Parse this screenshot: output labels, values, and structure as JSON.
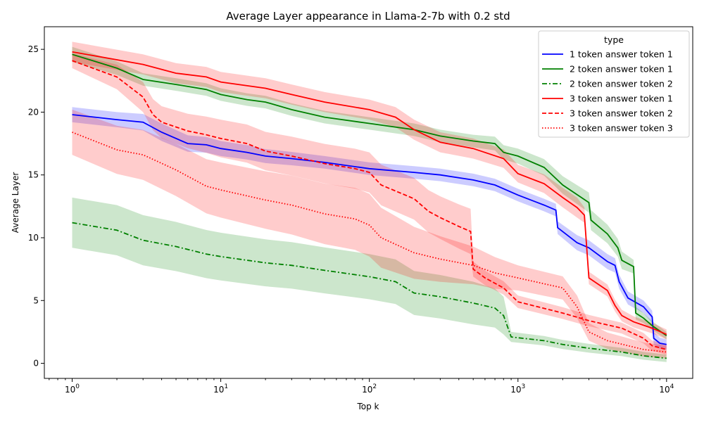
{
  "chart_data": {
    "type": "line",
    "title": "Average Layer appearance in Llama-2-7b with 0.2 std",
    "xlabel": "Top k",
    "ylabel": "Average Layer",
    "xscale": "log",
    "xlim": [
      0.65,
      15000
    ],
    "ylim": [
      -1.2,
      26.8
    ],
    "xticks": [
      {
        "value": 1,
        "base": "10",
        "exp": "0"
      },
      {
        "value": 10,
        "base": "10",
        "exp": "1"
      },
      {
        "value": 100,
        "base": "10",
        "exp": "2"
      },
      {
        "value": 1000,
        "base": "10",
        "exp": "3"
      },
      {
        "value": 10000,
        "base": "10",
        "exp": "4"
      }
    ],
    "yticks": [
      "0",
      "5",
      "10",
      "15",
      "20",
      "25"
    ],
    "grid": false,
    "legend": {
      "title": "type",
      "placement": "top-right"
    },
    "band_description": "shaded band = mean ± std",
    "series": [
      {
        "name": "1 token answer token 1",
        "color": "#0000ff",
        "style": "solid",
        "points": [
          [
            1,
            19.8
          ],
          [
            2,
            19.4
          ],
          [
            3,
            19.2
          ],
          [
            4,
            18.4
          ],
          [
            6,
            17.5
          ],
          [
            8,
            17.4
          ],
          [
            10,
            17.1
          ],
          [
            15,
            16.8
          ],
          [
            20,
            16.5
          ],
          [
            30,
            16.3
          ],
          [
            50,
            16.0
          ],
          [
            100,
            15.5
          ],
          [
            200,
            15.2
          ],
          [
            300,
            15.0
          ],
          [
            500,
            14.6
          ],
          [
            700,
            14.2
          ],
          [
            1000,
            13.4
          ],
          [
            1500,
            12.6
          ],
          [
            1800,
            12.2
          ],
          [
            1850,
            10.8
          ],
          [
            2500,
            9.6
          ],
          [
            3000,
            9.2
          ],
          [
            4000,
            8.1
          ],
          [
            4500,
            7.8
          ],
          [
            4800,
            6.5
          ],
          [
            5500,
            5.2
          ],
          [
            7000,
            4.5
          ],
          [
            8000,
            3.7
          ],
          [
            8200,
            2.0
          ],
          [
            9000,
            1.6
          ],
          [
            10000,
            1.5
          ]
        ],
        "std": [
          [
            1,
            0.6
          ],
          [
            2,
            0.6
          ],
          [
            4,
            0.7
          ],
          [
            10,
            0.6
          ],
          [
            50,
            0.5
          ],
          [
            200,
            0.5
          ],
          [
            1000,
            0.5
          ],
          [
            1800,
            0.5
          ],
          [
            2500,
            0.6
          ],
          [
            4000,
            0.6
          ],
          [
            6000,
            0.5
          ],
          [
            8000,
            0.5
          ],
          [
            10000,
            0.4
          ]
        ]
      },
      {
        "name": "2 token answer token 1",
        "color": "#008000",
        "style": "solid",
        "points": [
          [
            1,
            24.6
          ],
          [
            2,
            23.5
          ],
          [
            3,
            22.6
          ],
          [
            5,
            22.2
          ],
          [
            8,
            21.8
          ],
          [
            10,
            21.4
          ],
          [
            15,
            21.0
          ],
          [
            20,
            20.8
          ],
          [
            30,
            20.2
          ],
          [
            50,
            19.6
          ],
          [
            100,
            19.1
          ],
          [
            200,
            18.6
          ],
          [
            300,
            18.1
          ],
          [
            500,
            17.7
          ],
          [
            700,
            17.5
          ],
          [
            800,
            16.8
          ],
          [
            1000,
            16.5
          ],
          [
            1500,
            15.6
          ],
          [
            2000,
            14.2
          ],
          [
            3000,
            12.8
          ],
          [
            3100,
            11.4
          ],
          [
            4000,
            10.3
          ],
          [
            4700,
            9.2
          ],
          [
            5000,
            8.2
          ],
          [
            6000,
            7.7
          ],
          [
            6200,
            4.0
          ],
          [
            7000,
            3.6
          ],
          [
            8000,
            3.0
          ],
          [
            10000,
            2.2
          ]
        ],
        "std": [
          [
            1,
            0.6
          ],
          [
            3,
            0.5
          ],
          [
            10,
            0.5
          ],
          [
            100,
            0.5
          ],
          [
            500,
            0.5
          ],
          [
            1000,
            0.6
          ],
          [
            2000,
            0.7
          ],
          [
            3000,
            0.8
          ],
          [
            5000,
            0.7
          ],
          [
            7000,
            0.4
          ],
          [
            10000,
            0.3
          ]
        ]
      },
      {
        "name": "2 token answer token 2",
        "color": "#008000",
        "style": "dashdot",
        "points": [
          [
            1,
            11.2
          ],
          [
            2,
            10.6
          ],
          [
            3,
            9.8
          ],
          [
            5,
            9.3
          ],
          [
            8,
            8.7
          ],
          [
            10,
            8.5
          ],
          [
            20,
            8.0
          ],
          [
            30,
            7.8
          ],
          [
            50,
            7.4
          ],
          [
            100,
            6.9
          ],
          [
            150,
            6.5
          ],
          [
            200,
            5.6
          ],
          [
            300,
            5.3
          ],
          [
            500,
            4.8
          ],
          [
            700,
            4.4
          ],
          [
            800,
            3.8
          ],
          [
            900,
            2.1
          ],
          [
            1500,
            1.8
          ],
          [
            2000,
            1.5
          ],
          [
            3000,
            1.2
          ],
          [
            5000,
            0.9
          ],
          [
            7000,
            0.6
          ],
          [
            10000,
            0.4
          ]
        ],
        "std": [
          [
            1,
            2.0
          ],
          [
            3,
            2.0
          ],
          [
            10,
            1.9
          ],
          [
            100,
            1.8
          ],
          [
            500,
            1.7
          ],
          [
            800,
            1.5
          ],
          [
            900,
            0.4
          ],
          [
            10000,
            0.3
          ]
        ]
      },
      {
        "name": "3 token answer token 1",
        "color": "#ff0000",
        "style": "solid",
        "points": [
          [
            1,
            24.8
          ],
          [
            3,
            23.8
          ],
          [
            5,
            23.1
          ],
          [
            8,
            22.8
          ],
          [
            10,
            22.4
          ],
          [
            20,
            21.9
          ],
          [
            30,
            21.4
          ],
          [
            50,
            20.8
          ],
          [
            100,
            20.2
          ],
          [
            150,
            19.6
          ],
          [
            200,
            18.6
          ],
          [
            300,
            17.6
          ],
          [
            500,
            17.1
          ],
          [
            800,
            16.3
          ],
          [
            1000,
            15.1
          ],
          [
            1500,
            14.3
          ],
          [
            2000,
            13.2
          ],
          [
            2500,
            12.4
          ],
          [
            2800,
            11.8
          ],
          [
            3000,
            6.8
          ],
          [
            4000,
            5.8
          ],
          [
            4500,
            4.6
          ],
          [
            5000,
            3.8
          ],
          [
            6000,
            3.3
          ],
          [
            8000,
            2.8
          ],
          [
            10000,
            2.3
          ]
        ],
        "std": [
          [
            1,
            0.8
          ],
          [
            10,
            0.8
          ],
          [
            100,
            0.8
          ],
          [
            500,
            0.8
          ],
          [
            1000,
            0.7
          ],
          [
            2500,
            0.8
          ],
          [
            3000,
            0.5
          ],
          [
            10000,
            0.4
          ]
        ]
      },
      {
        "name": "3 token answer token 2",
        "color": "#ff0000",
        "style": "dashed",
        "points": [
          [
            1,
            24.1
          ],
          [
            2,
            22.8
          ],
          [
            3,
            21.2
          ],
          [
            3.5,
            19.8
          ],
          [
            4,
            19.2
          ],
          [
            6,
            18.5
          ],
          [
            8,
            18.2
          ],
          [
            10,
            17.9
          ],
          [
            15,
            17.5
          ],
          [
            20,
            16.9
          ],
          [
            30,
            16.5
          ],
          [
            50,
            15.9
          ],
          [
            80,
            15.5
          ],
          [
            100,
            15.2
          ],
          [
            120,
            14.2
          ],
          [
            200,
            13.1
          ],
          [
            250,
            12.1
          ],
          [
            300,
            11.6
          ],
          [
            400,
            10.9
          ],
          [
            480,
            10.5
          ],
          [
            500,
            7.5
          ],
          [
            600,
            6.8
          ],
          [
            800,
            6.0
          ],
          [
            1000,
            4.9
          ],
          [
            2000,
            4.0
          ],
          [
            3000,
            3.4
          ],
          [
            5000,
            2.8
          ],
          [
            7000,
            2.0
          ],
          [
            8000,
            1.4
          ],
          [
            10000,
            1.1
          ]
        ],
        "std": [
          [
            1,
            0.6
          ],
          [
            3,
            1.2
          ],
          [
            10,
            1.5
          ],
          [
            100,
            1.6
          ],
          [
            300,
            1.7
          ],
          [
            480,
            1.8
          ],
          [
            500,
            0.6
          ],
          [
            1000,
            0.5
          ],
          [
            10000,
            0.4
          ]
        ]
      },
      {
        "name": "3 token answer token 3",
        "color": "#ff0000",
        "style": "dotted",
        "points": [
          [
            1,
            18.4
          ],
          [
            2,
            17.0
          ],
          [
            3,
            16.6
          ],
          [
            5,
            15.4
          ],
          [
            8,
            14.1
          ],
          [
            10,
            13.8
          ],
          [
            20,
            13.0
          ],
          [
            30,
            12.6
          ],
          [
            50,
            11.9
          ],
          [
            80,
            11.5
          ],
          [
            100,
            11.0
          ],
          [
            120,
            10.0
          ],
          [
            200,
            8.8
          ],
          [
            300,
            8.3
          ],
          [
            500,
            7.8
          ],
          [
            700,
            7.2
          ],
          [
            1000,
            6.8
          ],
          [
            2000,
            6.0
          ],
          [
            2500,
            4.5
          ],
          [
            3000,
            2.5
          ],
          [
            4000,
            1.8
          ],
          [
            7000,
            1.1
          ],
          [
            10000,
            0.9
          ]
        ],
        "std": [
          [
            1,
            1.8
          ],
          [
            10,
            2.2
          ],
          [
            100,
            2.5
          ],
          [
            500,
            1.5
          ],
          [
            1000,
            1.0
          ],
          [
            2500,
            0.9
          ],
          [
            3000,
            0.7
          ],
          [
            10000,
            0.5
          ]
        ]
      }
    ]
  }
}
